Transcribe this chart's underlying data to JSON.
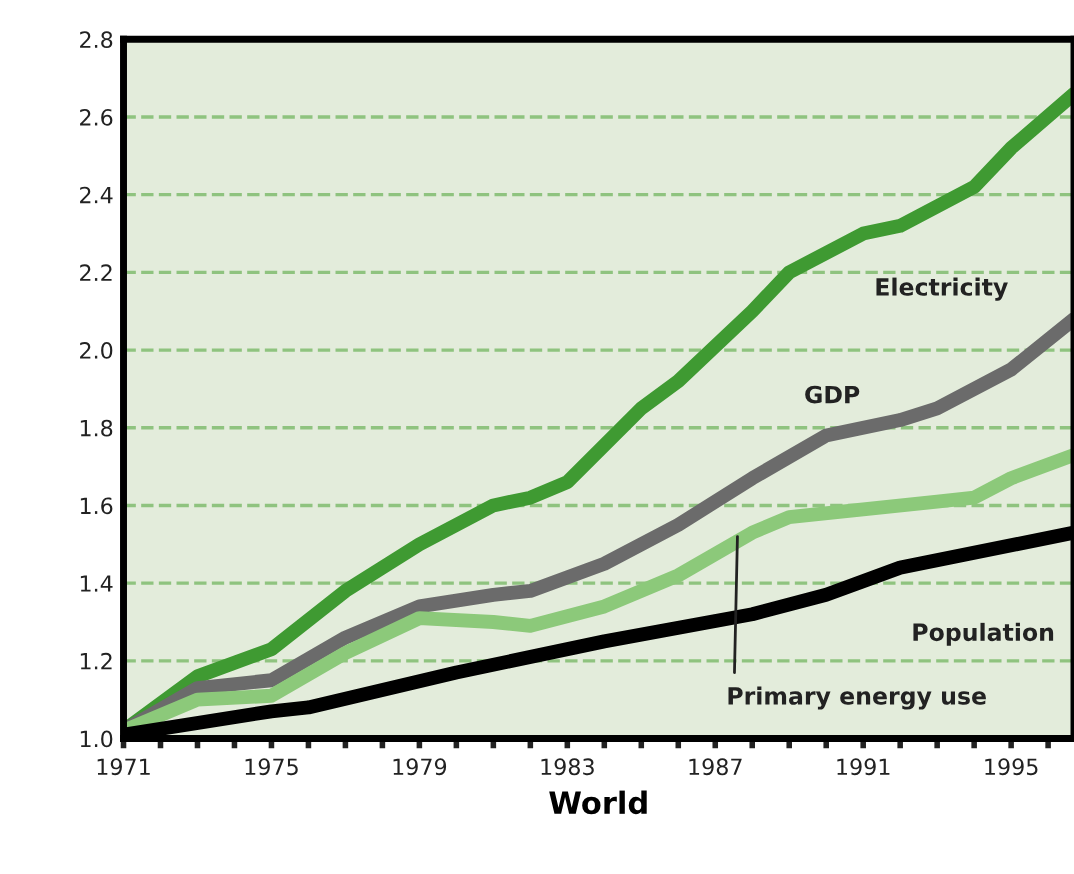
{
  "chart_data": {
    "type": "line",
    "xlabel": "World",
    "xlim": [
      1971,
      1996.7
    ],
    "ylim": [
      1.0,
      2.8
    ],
    "xticks": [
      {
        "value": 1971,
        "label": "1971"
      },
      {
        "value": 1972,
        "label": null
      },
      {
        "value": 1973,
        "label": null
      },
      {
        "value": 1974,
        "label": null
      },
      {
        "value": 1975,
        "label": "1975"
      },
      {
        "value": 1976,
        "label": null
      },
      {
        "value": 1977,
        "label": null
      },
      {
        "value": 1978,
        "label": null
      },
      {
        "value": 1979,
        "label": "1979"
      },
      {
        "value": 1980,
        "label": null
      },
      {
        "value": 1981,
        "label": null
      },
      {
        "value": 1982,
        "label": null
      },
      {
        "value": 1983,
        "label": "1983"
      },
      {
        "value": 1984,
        "label": null
      },
      {
        "value": 1985,
        "label": null
      },
      {
        "value": 1986,
        "label": null
      },
      {
        "value": 1987,
        "label": "1987"
      },
      {
        "value": 1988,
        "label": null
      },
      {
        "value": 1989,
        "label": null
      },
      {
        "value": 1990,
        "label": null
      },
      {
        "value": 1991,
        "label": "1991"
      },
      {
        "value": 1992,
        "label": null
      },
      {
        "value": 1993,
        "label": null
      },
      {
        "value": 1994,
        "label": null
      },
      {
        "value": 1995,
        "label": "1995"
      },
      {
        "value": 1996,
        "label": null
      }
    ],
    "yticks": [
      {
        "value": 1.0,
        "label": "1.0"
      },
      {
        "value": 1.2,
        "label": "1.2"
      },
      {
        "value": 1.4,
        "label": "1.4"
      },
      {
        "value": 1.6,
        "label": "1.6"
      },
      {
        "value": 1.8,
        "label": "1.8"
      },
      {
        "value": 2.0,
        "label": "2.0"
      },
      {
        "value": 2.2,
        "label": "2.2"
      },
      {
        "value": 2.4,
        "label": "2.4"
      },
      {
        "value": 2.6,
        "label": "2.6"
      },
      {
        "value": 2.8,
        "label": "2.8"
      }
    ],
    "grid": "y",
    "legend": false,
    "marker": "none",
    "line_style": "solid",
    "series": [
      {
        "color": "#3f9a32",
        "x": [
          1971,
          1973,
          1975,
          1977,
          1979,
          1981,
          1982,
          1983,
          1985,
          1986,
          1988,
          1989,
          1991,
          1992,
          1994,
          1995,
          1996.7
        ],
        "values": [
          1.02,
          1.16,
          1.23,
          1.38,
          1.5,
          1.6,
          1.62,
          1.66,
          1.85,
          1.92,
          2.1,
          2.2,
          2.3,
          2.32,
          2.42,
          2.52,
          2.66
        ]
      },
      {
        "color": "#6b6b6b",
        "x": [
          1971,
          1973,
          1975,
          1977,
          1979,
          1981,
          1982,
          1984,
          1986,
          1988,
          1990,
          1992,
          1993,
          1995,
          1996.7
        ],
        "values": [
          1.02,
          1.13,
          1.15,
          1.26,
          1.34,
          1.37,
          1.38,
          1.45,
          1.55,
          1.67,
          1.78,
          1.82,
          1.85,
          1.95,
          2.08
        ]
      },
      {
        "color": "#8cc97a",
        "x": [
          1971,
          1973,
          1975,
          1977,
          1979,
          1981,
          1982,
          1984,
          1986,
          1988,
          1989,
          1991,
          1993,
          1994,
          1995,
          1996.7
        ],
        "values": [
          1.02,
          1.1,
          1.11,
          1.22,
          1.31,
          1.3,
          1.29,
          1.34,
          1.42,
          1.53,
          1.57,
          1.59,
          1.61,
          1.62,
          1.67,
          1.73
        ]
      },
      {
        "color": "#000000",
        "x": [
          1971,
          1975,
          1976,
          1980,
          1984,
          1988,
          1990,
          1992,
          1996.7
        ],
        "values": [
          1.01,
          1.07,
          1.08,
          1.17,
          1.25,
          1.32,
          1.37,
          1.44,
          1.53
        ]
      }
    ],
    "annotations": [
      {
        "text": "Electricity",
        "x": 1991,
        "y": 2.3
      },
      {
        "text": "GDP",
        "x": 1990,
        "y": 1.78
      },
      {
        "text": "Population",
        "x": 1992,
        "y": 1.44
      },
      {
        "text": "Primary energy use",
        "x": 1987.6,
        "y": 1.52
      }
    ]
  }
}
